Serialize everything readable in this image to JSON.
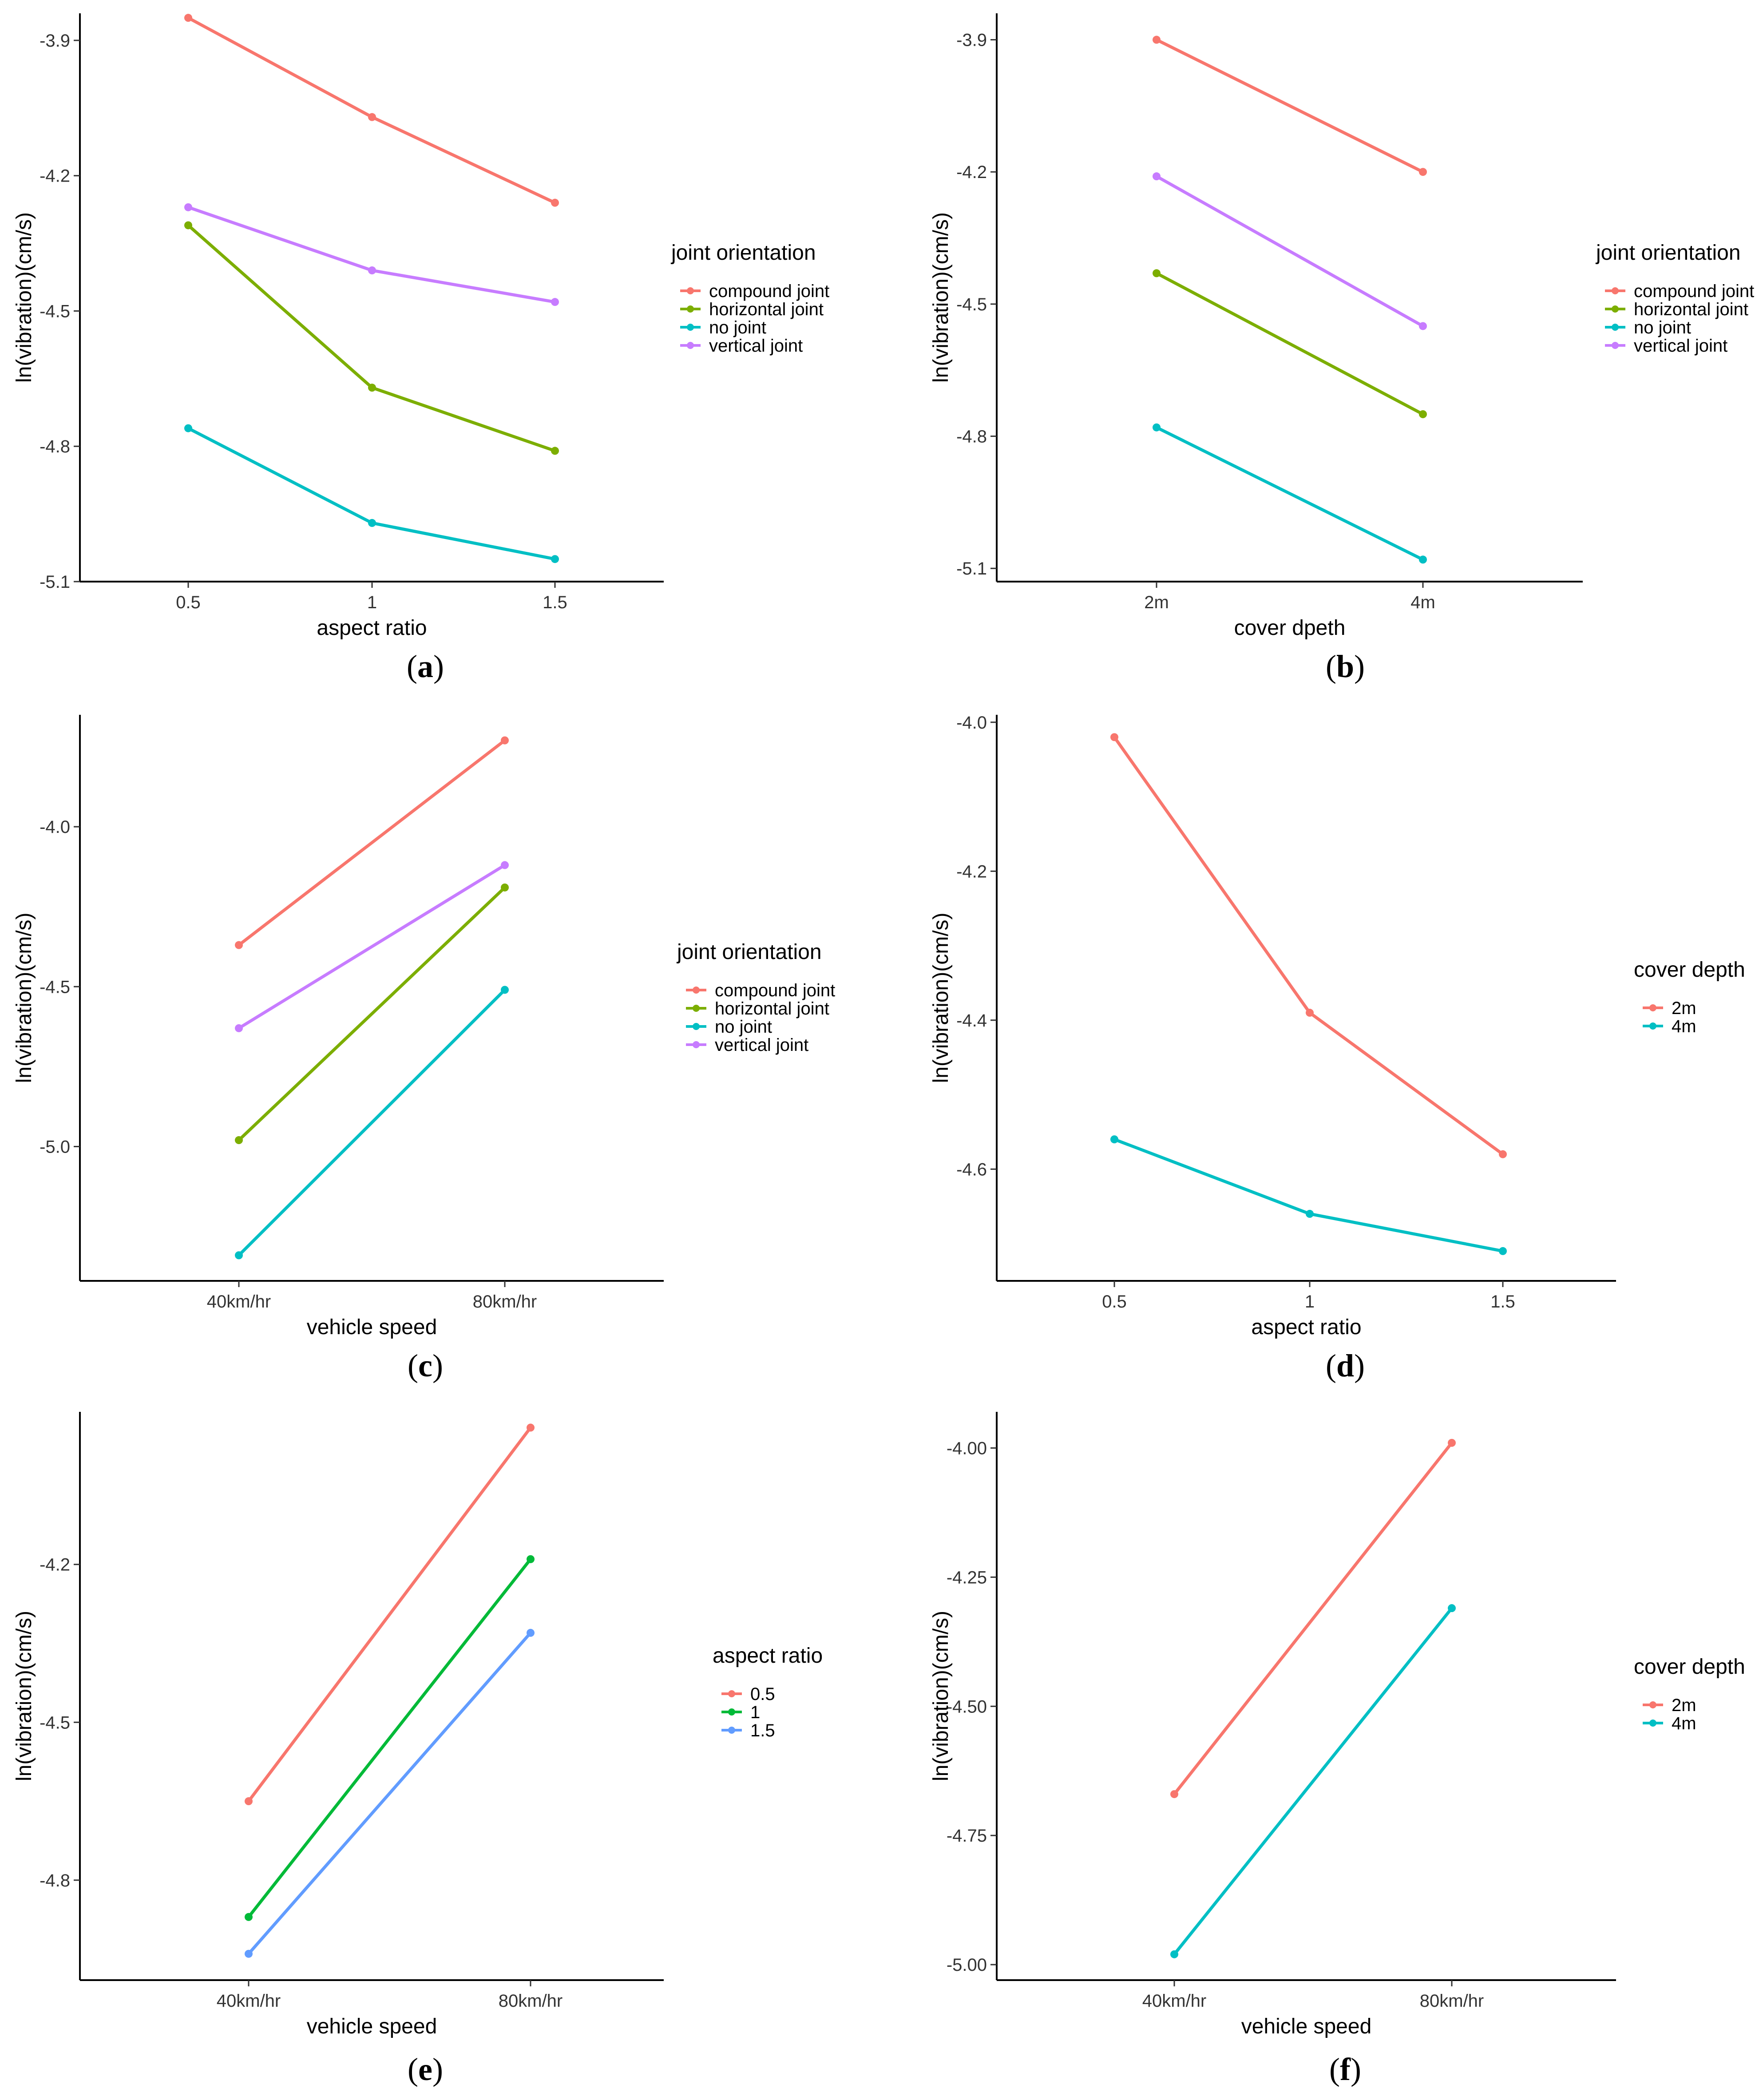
{
  "chart_data": [
    {
      "panel_label": "a",
      "type": "line",
      "xlabel": "aspect ratio",
      "ylabel": "ln(vibration)(cm/s)",
      "categories": [
        "0.5",
        "1",
        "1.5"
      ],
      "yticks": [
        "-3.9",
        "-4.2",
        "-4.5",
        "-4.8",
        "-5.1"
      ],
      "ylim": [
        -5.1,
        -3.84
      ],
      "legend_title": "joint  orientation",
      "legend_position": "right",
      "series": [
        {
          "name": "compound joint",
          "color": "#F8766D",
          "values": [
            -3.85,
            -4.07,
            -4.26
          ]
        },
        {
          "name": "horizontal joint",
          "color": "#7CAE00",
          "values": [
            -4.31,
            -4.67,
            -4.81
          ]
        },
        {
          "name": "no joint",
          "color": "#00BFC4",
          "values": [
            -4.76,
            -4.97,
            -5.05
          ]
        },
        {
          "name": "vertical joint",
          "color": "#C77CFF",
          "values": [
            -4.27,
            -4.41,
            -4.48
          ]
        }
      ]
    },
    {
      "panel_label": "b",
      "type": "line",
      "xlabel": "cover dpeth",
      "ylabel": "ln(vibration)(cm/s)",
      "categories": [
        "2m",
        "4m"
      ],
      "yticks": [
        "-3.9",
        "-4.2",
        "-4.5",
        "-4.8",
        "-5.1"
      ],
      "ylim": [
        -5.13,
        -3.84
      ],
      "legend_title": "joint  orientation",
      "legend_position": "right",
      "series": [
        {
          "name": "compound joint",
          "color": "#F8766D",
          "values": [
            -3.9,
            -4.2
          ]
        },
        {
          "name": "horizontal joint",
          "color": "#7CAE00",
          "values": [
            -4.43,
            -4.75
          ]
        },
        {
          "name": "no joint",
          "color": "#00BFC4",
          "values": [
            -4.78,
            -5.08
          ]
        },
        {
          "name": "vertical joint",
          "color": "#C77CFF",
          "values": [
            -4.21,
            -4.55
          ]
        }
      ]
    },
    {
      "panel_label": "c",
      "type": "line",
      "xlabel": "vehicle speed",
      "ylabel": "ln(vibration)(cm/s)",
      "categories": [
        "40km/hr",
        "80km/hr"
      ],
      "yticks": [
        "-4.0",
        "-4.5",
        "-5.0"
      ],
      "ylim": [
        -5.42,
        -3.65
      ],
      "legend_title": "joint  orientation",
      "legend_position": "right",
      "series": [
        {
          "name": "compound joint",
          "color": "#F8766D",
          "values": [
            -4.37,
            -3.73
          ]
        },
        {
          "name": "horizontal joint",
          "color": "#7CAE00",
          "values": [
            -4.98,
            -4.19
          ]
        },
        {
          "name": "no joint",
          "color": "#00BFC4",
          "values": [
            -5.34,
            -4.51
          ]
        },
        {
          "name": "vertical joint",
          "color": "#C77CFF",
          "values": [
            -4.63,
            -4.12
          ]
        }
      ]
    },
    {
      "panel_label": "d",
      "type": "line",
      "xlabel": "aspect ratio",
      "ylabel": "ln(vibration)(cm/s)",
      "categories": [
        "0.5",
        "1",
        "1.5"
      ],
      "yticks": [
        "-4.0",
        "-4.2",
        "-4.4",
        "-4.6"
      ],
      "ylim": [
        -4.75,
        -3.99
      ],
      "legend_title": "cover  depth",
      "legend_position": "right",
      "series": [
        {
          "name": "2m",
          "color": "#F8766D",
          "values": [
            -4.02,
            -4.39,
            -4.58
          ]
        },
        {
          "name": "4m",
          "color": "#00BFC4",
          "values": [
            -4.56,
            -4.66,
            -4.71
          ]
        }
      ]
    },
    {
      "panel_label": "e",
      "type": "line",
      "xlabel": "vehicle speed",
      "ylabel": "ln(vibration)(cm/s)",
      "categories": [
        "40km/hr",
        "80km/hr"
      ],
      "yticks": [
        "-4.2",
        "-4.5",
        "-4.8"
      ],
      "ylim": [
        -4.99,
        -3.91
      ],
      "legend_title": "aspect  ratio",
      "legend_position": "right",
      "series": [
        {
          "name": "0.5",
          "color": "#F8766D",
          "values": [
            -4.65,
            -3.94
          ]
        },
        {
          "name": "1",
          "color": "#00BA38",
          "values": [
            -4.87,
            -4.19
          ]
        },
        {
          "name": "1.5",
          "color": "#619CFF",
          "values": [
            -4.94,
            -4.33
          ]
        }
      ]
    },
    {
      "panel_label": "f",
      "type": "line",
      "xlabel": "vehicle speed",
      "ylabel": "ln(vibration)(cm/s)",
      "categories": [
        "40km/hr",
        "80km/hr"
      ],
      "yticks": [
        "-4.00",
        "-4.25",
        "-4.50",
        "-4.75",
        "-5.00"
      ],
      "ylim": [
        -5.03,
        -3.93
      ],
      "legend_title": "cover  depth",
      "legend_position": "right",
      "series": [
        {
          "name": "2m",
          "color": "#F8766D",
          "values": [
            -4.67,
            -3.99
          ]
        },
        {
          "name": "4m",
          "color": "#00BFC4",
          "values": [
            -4.98,
            -4.31
          ]
        }
      ]
    }
  ]
}
